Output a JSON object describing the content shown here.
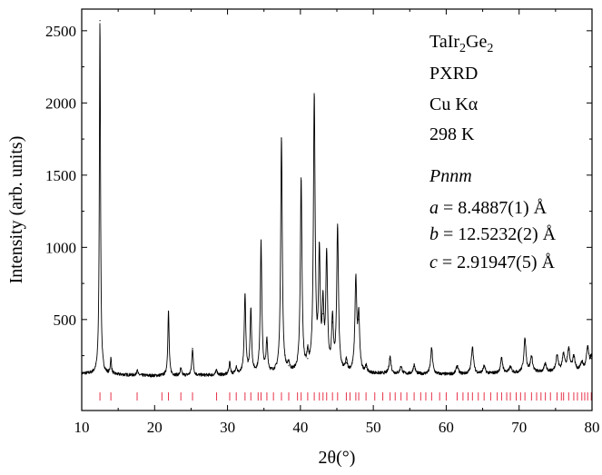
{
  "chart_data": {
    "type": "line",
    "xlabel": "2θ(°)",
    "ylabel": "Intensity (arb. units)",
    "xlim": [
      10,
      80
    ],
    "ylim": [
      -130,
      2650
    ],
    "x_ticks": [
      10,
      20,
      30,
      40,
      50,
      60,
      70,
      80
    ],
    "y_ticks": [
      500,
      1000,
      1500,
      2000,
      2500
    ],
    "grid": false,
    "legend": "none",
    "colors": {
      "pattern": "#000000",
      "reflections": "#e8324a",
      "axes": "#000000"
    },
    "annotations": {
      "compound": {
        "base1": "TaIr",
        "sub1": "2",
        "base2": "Ge",
        "sub2": "2"
      },
      "method": "PXRD",
      "radiation": "Cu Kα",
      "temperature": "298 K",
      "space_group": "Pnnm",
      "a": {
        "symbol": "a",
        "value": " = 8.4887(1) Å"
      },
      "b": {
        "symbol": "b",
        "value": " = 12.5232(2) Å"
      },
      "c": {
        "symbol": "c",
        "value": " = 2.91947(5) Å"
      }
    },
    "background": [
      [
        10,
        125
      ],
      [
        20,
        110
      ],
      [
        30,
        115
      ],
      [
        40,
        130
      ],
      [
        50,
        125
      ],
      [
        60,
        120
      ],
      [
        70,
        130
      ],
      [
        80,
        145
      ]
    ],
    "peaks": [
      {
        "x": 12.5,
        "y": 2570
      },
      {
        "x": 14.0,
        "y": 225
      },
      {
        "x": 17.6,
        "y": 150
      },
      {
        "x": 21.9,
        "y": 555
      },
      {
        "x": 23.6,
        "y": 160
      },
      {
        "x": 25.2,
        "y": 300
      },
      {
        "x": 28.5,
        "y": 150
      },
      {
        "x": 30.3,
        "y": 200
      },
      {
        "x": 31.2,
        "y": 170
      },
      {
        "x": 32.4,
        "y": 670
      },
      {
        "x": 33.2,
        "y": 560
      },
      {
        "x": 34.6,
        "y": 1025
      },
      {
        "x": 35.4,
        "y": 340
      },
      {
        "x": 37.4,
        "y": 1755
      },
      {
        "x": 38.4,
        "y": 180
      },
      {
        "x": 40.1,
        "y": 1460
      },
      {
        "x": 41.0,
        "y": 230
      },
      {
        "x": 41.9,
        "y": 2020
      },
      {
        "x": 42.6,
        "y": 920
      },
      {
        "x": 43.1,
        "y": 540
      },
      {
        "x": 43.6,
        "y": 915
      },
      {
        "x": 44.4,
        "y": 480
      },
      {
        "x": 45.1,
        "y": 1130
      },
      {
        "x": 46.3,
        "y": 200
      },
      {
        "x": 47.6,
        "y": 760
      },
      {
        "x": 48.0,
        "y": 500
      },
      {
        "x": 49.0,
        "y": 170
      },
      {
        "x": 52.3,
        "y": 240
      },
      {
        "x": 53.8,
        "y": 175
      },
      {
        "x": 55.6,
        "y": 185
      },
      {
        "x": 58.0,
        "y": 300
      },
      {
        "x": 61.5,
        "y": 180
      },
      {
        "x": 63.6,
        "y": 310
      },
      {
        "x": 65.2,
        "y": 175
      },
      {
        "x": 67.6,
        "y": 230
      },
      {
        "x": 68.8,
        "y": 170
      },
      {
        "x": 70.8,
        "y": 360
      },
      {
        "x": 71.7,
        "y": 240
      },
      {
        "x": 73.6,
        "y": 190
      },
      {
        "x": 75.2,
        "y": 250
      },
      {
        "x": 76.1,
        "y": 260
      },
      {
        "x": 76.8,
        "y": 290
      },
      {
        "x": 77.5,
        "y": 240
      },
      {
        "x": 78.6,
        "y": 200
      },
      {
        "x": 79.4,
        "y": 300
      },
      {
        "x": 79.9,
        "y": 230
      }
    ],
    "reflections": [
      12.5,
      14.0,
      17.6,
      21.0,
      21.9,
      23.6,
      25.2,
      28.5,
      30.3,
      31.2,
      32.4,
      33.2,
      34.2,
      34.6,
      35.4,
      36.3,
      37.4,
      38.4,
      39.6,
      40.1,
      41.0,
      41.9,
      42.6,
      43.1,
      43.6,
      44.4,
      45.1,
      46.3,
      46.8,
      47.6,
      48.0,
      49.0,
      50.2,
      51.3,
      52.3,
      53.0,
      53.8,
      54.6,
      55.6,
      56.5,
      57.2,
      58.0,
      59.1,
      60.0,
      61.5,
      62.3,
      63.0,
      63.6,
      64.4,
      65.2,
      66.1,
      67.0,
      67.6,
      68.3,
      68.8,
      69.6,
      70.2,
      70.8,
      71.7,
      72.4,
      73.0,
      73.6,
      74.3,
      75.2,
      75.8,
      76.1,
      76.8,
      77.5,
      78.0,
      78.6,
      79.0,
      79.4,
      79.9
    ]
  }
}
